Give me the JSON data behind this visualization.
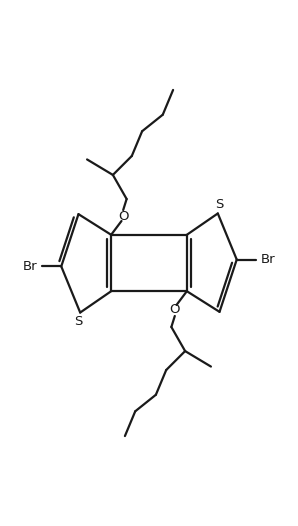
{
  "bg_color": "#ffffff",
  "line_color": "#1a1a1a",
  "line_width": 1.6,
  "figsize": [
    2.98,
    5.26
  ],
  "dpi": 100,
  "xlim": [
    0,
    8.5
  ],
  "ylim": [
    0,
    15.0
  ]
}
